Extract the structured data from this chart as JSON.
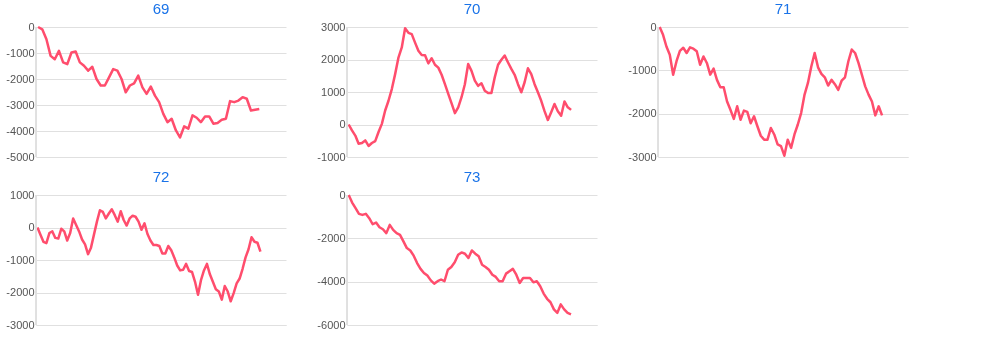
{
  "chart_data": [
    {
      "type": "line",
      "title": "69",
      "color": "#ff4d6d",
      "grid": "y",
      "tick_labels": "y",
      "ylim": [
        -5000,
        0
      ],
      "yticks": [
        0,
        -1000,
        -2000,
        -3000,
        -4000,
        -5000
      ],
      "categories": [
        null,
        null,
        null,
        null,
        null,
        null,
        null,
        null,
        null,
        null,
        null,
        null,
        null,
        null,
        null,
        null,
        null,
        null,
        null,
        null,
        null,
        null,
        null,
        null,
        null,
        null,
        null,
        null,
        null,
        null,
        null,
        null,
        null,
        null,
        null,
        null,
        null,
        null,
        null,
        null,
        null,
        null,
        null,
        null,
        null,
        null,
        null,
        null,
        null,
        null,
        null,
        null,
        null,
        null
      ],
      "values": [
        0,
        -90,
        -470,
        -1110,
        -1240,
        -920,
        -1360,
        -1430,
        -980,
        -940,
        -1360,
        -1490,
        -1680,
        -1530,
        -2000,
        -2250,
        -2250,
        -1940,
        -1620,
        -1680,
        -2000,
        -2510,
        -2250,
        -2170,
        -1870,
        -2320,
        -2570,
        -2290,
        -2640,
        -2890,
        -3340,
        -3660,
        -3530,
        -3970,
        -4250,
        -3820,
        -3910,
        -3400,
        -3490,
        -3660,
        -3440,
        -3440,
        -3720,
        -3690,
        -3570,
        -3530,
        -2850,
        -2890,
        -2830,
        -2700,
        -2760,
        -3210,
        -3180,
        -3150
      ]
    },
    {
      "type": "line",
      "title": "70",
      "color": "#ff4d6d",
      "grid": "y",
      "tick_labels": "y",
      "ylim": [
        -1000,
        3000
      ],
      "yticks": [
        -1000,
        0,
        1000,
        2000,
        3000
      ],
      "categories": [
        null,
        null,
        null,
        null,
        null,
        null,
        null,
        null,
        null,
        null,
        null,
        null,
        null,
        null,
        null,
        null,
        null,
        null,
        null,
        null,
        null,
        null,
        null,
        null,
        null,
        null,
        null,
        null,
        null,
        null,
        null,
        null,
        null,
        null,
        null,
        null,
        null,
        null,
        null,
        null,
        null,
        null,
        null,
        null,
        null,
        null,
        null,
        null,
        null,
        null,
        null,
        null,
        null,
        null,
        null,
        null,
        null,
        null,
        null,
        null,
        null,
        null,
        null,
        null,
        null,
        null,
        null,
        null
      ],
      "values": [
        0,
        -180,
        -340,
        -590,
        -570,
        -490,
        -660,
        -570,
        -510,
        -230,
        20,
        430,
        730,
        1090,
        1550,
        2060,
        2370,
        2960,
        2820,
        2780,
        2520,
        2270,
        2140,
        2130,
        1880,
        2040,
        1840,
        1750,
        1530,
        1240,
        940,
        650,
        350,
        530,
        840,
        1240,
        1860,
        1650,
        1350,
        1190,
        1270,
        1040,
        970,
        970,
        1450,
        1840,
        1990,
        2120,
        1910,
        1710,
        1530,
        1240,
        990,
        1300,
        1730,
        1550,
        1240,
        990,
        730,
        410,
        140,
        380,
        630,
        410,
        270,
        710,
        530,
        450
      ]
    },
    {
      "type": "line",
      "title": "71",
      "color": "#ff4d6d",
      "grid": "y",
      "tick_labels": "y",
      "ylim": [
        -3000,
        0
      ],
      "yticks": [
        0,
        -1000,
        -2000,
        -3000
      ],
      "categories": [
        null,
        null,
        null,
        null,
        null,
        null,
        null,
        null,
        null,
        null,
        null,
        null,
        null,
        null,
        null,
        null,
        null,
        null,
        null,
        null,
        null,
        null,
        null,
        null,
        null,
        null,
        null,
        null,
        null,
        null,
        null,
        null,
        null,
        null,
        null,
        null,
        null,
        null,
        null,
        null,
        null,
        null,
        null,
        null,
        null,
        null,
        null,
        null,
        null,
        null,
        null,
        null,
        null,
        null,
        null,
        null,
        null,
        null,
        null,
        null,
        null,
        null,
        null,
        null,
        null,
        null,
        null
      ],
      "values": [
        0,
        -180,
        -450,
        -640,
        -1100,
        -790,
        -550,
        -480,
        -600,
        -470,
        -500,
        -560,
        -870,
        -680,
        -830,
        -1100,
        -960,
        -1220,
        -1390,
        -1390,
        -1720,
        -1910,
        -2120,
        -1830,
        -2140,
        -1930,
        -1960,
        -2220,
        -2060,
        -2290,
        -2510,
        -2600,
        -2600,
        -2330,
        -2480,
        -2710,
        -2750,
        -2970,
        -2600,
        -2790,
        -2480,
        -2250,
        -1980,
        -1560,
        -1290,
        -910,
        -600,
        -930,
        -1080,
        -1160,
        -1350,
        -1220,
        -1320,
        -1450,
        -1240,
        -1160,
        -790,
        -520,
        -600,
        -830,
        -1100,
        -1370,
        -1560,
        -1720,
        -2040,
        -1830,
        -2040
      ]
    },
    {
      "type": "line",
      "title": "72",
      "color": "#ff4d6d",
      "grid": "y",
      "tick_labels": "y",
      "ylim": [
        -3000,
        1000
      ],
      "yticks": [
        1000,
        0,
        -1000,
        -2000,
        -3000
      ],
      "categories": [
        null,
        null,
        null,
        null,
        null,
        null,
        null,
        null,
        null,
        null,
        null,
        null,
        null,
        null,
        null,
        null,
        null,
        null,
        null,
        null,
        null,
        null,
        null,
        null,
        null,
        null,
        null,
        null,
        null,
        null,
        null,
        null,
        null,
        null,
        null,
        null,
        null,
        null,
        null,
        null,
        null,
        null,
        null,
        null,
        null,
        null,
        null,
        null,
        null,
        null,
        null,
        null,
        null,
        null,
        null,
        null,
        null,
        null,
        null,
        null,
        null,
        null,
        null,
        null,
        null,
        null,
        null,
        null,
        null,
        null,
        null,
        null,
        null,
        null,
        null,
        null
      ],
      "values": [
        0,
        -220,
        -440,
        -480,
        -170,
        -120,
        -320,
        -340,
        -40,
        -120,
        -400,
        -170,
        280,
        80,
        -120,
        -370,
        -520,
        -820,
        -620,
        -220,
        180,
        530,
        480,
        280,
        430,
        560,
        380,
        180,
        500,
        230,
        60,
        280,
        360,
        330,
        180,
        -70,
        130,
        -200,
        -400,
        -540,
        -540,
        -570,
        -800,
        -800,
        -570,
        -700,
        -920,
        -1170,
        -1320,
        -1300,
        -1120,
        -1340,
        -1370,
        -1670,
        -2070,
        -1620,
        -1320,
        -1120,
        -1440,
        -1670,
        -1900,
        -1970,
        -2220,
        -1800,
        -1970,
        -2270,
        -2020,
        -1720,
        -1570,
        -1270,
        -920,
        -670,
        -300,
        -440,
        -470,
        -740
      ]
    },
    {
      "type": "line",
      "title": "73",
      "color": "#ff4d6d",
      "grid": "y",
      "tick_labels": "y",
      "ylim": [
        -6000,
        0
      ],
      "yticks": [
        0,
        -2000,
        -4000,
        -6000
      ],
      "categories": [
        null,
        null,
        null,
        null,
        null,
        null,
        null,
        null,
        null,
        null,
        null,
        null,
        null,
        null,
        null,
        null,
        null,
        null,
        null,
        null,
        null,
        null,
        null,
        null,
        null,
        null,
        null,
        null,
        null,
        null,
        null,
        null,
        null,
        null,
        null,
        null,
        null,
        null,
        null,
        null,
        null,
        null,
        null,
        null,
        null,
        null,
        null,
        null,
        null,
        null,
        null,
        null,
        null,
        null,
        null,
        null,
        null,
        null,
        null,
        null,
        null,
        null,
        null,
        null,
        null,
        null
      ],
      "values": [
        0,
        -350,
        -610,
        -870,
        -920,
        -870,
        -1070,
        -1350,
        -1270,
        -1490,
        -1580,
        -1760,
        -1380,
        -1610,
        -1760,
        -1840,
        -2140,
        -2450,
        -2560,
        -2800,
        -3140,
        -3410,
        -3600,
        -3720,
        -3940,
        -4090,
        -3980,
        -3900,
        -3980,
        -3450,
        -3320,
        -3100,
        -2760,
        -2650,
        -2710,
        -2910,
        -2560,
        -2710,
        -2830,
        -3220,
        -3320,
        -3450,
        -3680,
        -3780,
        -3980,
        -3980,
        -3630,
        -3520,
        -3410,
        -3680,
        -4060,
        -3830,
        -3830,
        -3830,
        -4030,
        -3980,
        -4210,
        -4550,
        -4790,
        -4950,
        -5280,
        -5440,
        -5050,
        -5280,
        -5440,
        -5510
      ]
    }
  ]
}
